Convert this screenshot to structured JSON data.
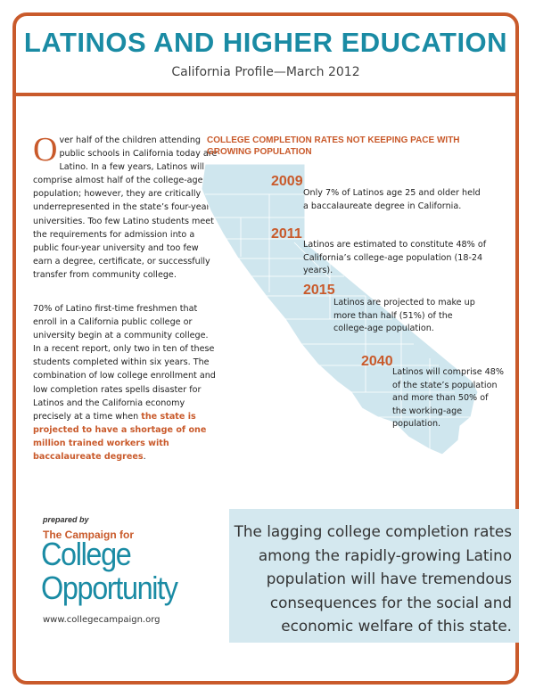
{
  "header": {
    "title": "LATINOS AND HIGHER EDUCATION",
    "subtitle": "California Profile—March 2012"
  },
  "intro": {
    "dropcap": "O",
    "paragraph1": "ver half of the children attending public schools in California today are Latino.  In a few years, Latinos will comprise almost half of the college-age population; however, they are critically underrepresented in the state’s four-year universities.  Too few Latino students meet the requirements for admission into a public four-year university and too few earn a degree, certificate, or successfully transfer from community college.",
    "paragraph2": "70% of Latino first-time freshmen that enroll in a California public college or university begin at a community college.  In a recent report, only two in ten of these students completed within six years.  The combination of low college enrollment and low completion rates spells disaster for Latinos and the California economy precisely at a time when ",
    "paragraph2_highlight": "the state is projected to have a shortage of one million trained workers with baccalaureate degrees",
    "paragraph2_end": "."
  },
  "timeline": {
    "heading": "COLLEGE COMPLETION RATES NOT KEEPING PACE WITH GROWING POPULATION",
    "map_color": "#cfe6ee",
    "accent_color": "#c95a2b",
    "items": [
      {
        "year": "2009",
        "text": "Only 7% of Latinos age 25 and older held a baccalaureate degree in California."
      },
      {
        "year": "2011",
        "text": "Latinos are estimated to constitute 48% of California’s college-age population (18-24 years)."
      },
      {
        "year": "2015",
        "text": "Latinos are projected to make up more than half (51%) of the college-age population."
      },
      {
        "year": "2040",
        "text": "Latinos will comprise 48% of the state’s population and more than 50% of the working-age population."
      }
    ]
  },
  "logo": {
    "prepared_by": "prepared by",
    "campaign_for": "The Campaign for",
    "line1": "College",
    "line2": "Opportunity",
    "url": "www.collegecampaign.org"
  },
  "callout": {
    "text": "The lagging college completion rates among the rapidly-growing Latino population will have tremendous consequences for the social and economic welfare of this state."
  },
  "colors": {
    "border": "#c95a2b",
    "title": "#1a8ba4",
    "callout_bg": "#d4e8ef"
  }
}
